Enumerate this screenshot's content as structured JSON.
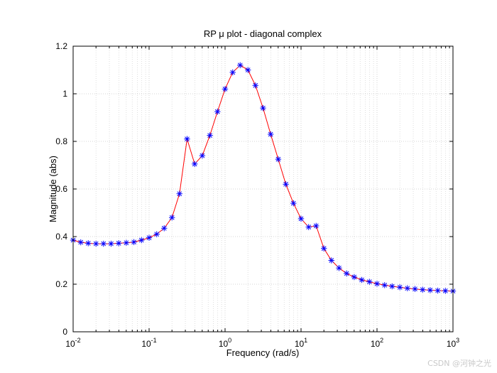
{
  "chart_data": {
    "type": "line",
    "title": "RP μ plot - diagonal complex",
    "xlabel": "Frequency  (rad/s)",
    "ylabel": "Magnitude (abs)",
    "xscale": "log",
    "xlim": [
      0.01,
      1000
    ],
    "ylim": [
      0,
      1.2
    ],
    "grid": true,
    "x_ticks": [
      {
        "value": 0.01,
        "base": "10",
        "exp": "-2"
      },
      {
        "value": 0.1,
        "base": "10",
        "exp": "-1"
      },
      {
        "value": 1,
        "base": "10",
        "exp": "0"
      },
      {
        "value": 10,
        "base": "10",
        "exp": "1"
      },
      {
        "value": 100,
        "base": "10",
        "exp": "2"
      },
      {
        "value": 1000,
        "base": "10",
        "exp": "3"
      }
    ],
    "y_ticks": [
      "0",
      "0.2",
      "0.4",
      "0.6",
      "0.8",
      "1",
      "1.2"
    ],
    "series": [
      {
        "name": "mu",
        "line_color": "#ff0000",
        "marker": "asterisk",
        "marker_color": "#0000ff",
        "x": [
          0.01,
          0.0126,
          0.0158,
          0.02,
          0.0251,
          0.0316,
          0.0398,
          0.0501,
          0.0631,
          0.0794,
          0.1,
          0.126,
          0.158,
          0.2,
          0.251,
          0.316,
          0.398,
          0.501,
          0.631,
          0.794,
          1.0,
          1.26,
          1.58,
          2.0,
          2.51,
          3.16,
          3.98,
          5.01,
          6.31,
          7.94,
          10.0,
          12.6,
          15.8,
          20.0,
          25.1,
          31.6,
          39.8,
          50.1,
          63.1,
          79.4,
          100,
          126,
          158,
          200,
          251,
          316,
          398,
          501,
          631,
          794,
          1000
        ],
        "y": [
          0.385,
          0.376,
          0.372,
          0.37,
          0.37,
          0.37,
          0.372,
          0.374,
          0.377,
          0.385,
          0.395,
          0.41,
          0.435,
          0.48,
          0.58,
          0.81,
          0.705,
          0.74,
          0.825,
          0.925,
          1.02,
          1.09,
          1.12,
          1.1,
          1.035,
          0.94,
          0.83,
          0.725,
          0.62,
          0.54,
          0.475,
          0.44,
          0.445,
          0.35,
          0.3,
          0.268,
          0.245,
          0.23,
          0.218,
          0.21,
          0.202,
          0.196,
          0.191,
          0.187,
          0.183,
          0.18,
          0.177,
          0.175,
          0.173,
          0.172,
          0.171
        ]
      }
    ]
  },
  "watermark": "CSDN @河钟之光"
}
